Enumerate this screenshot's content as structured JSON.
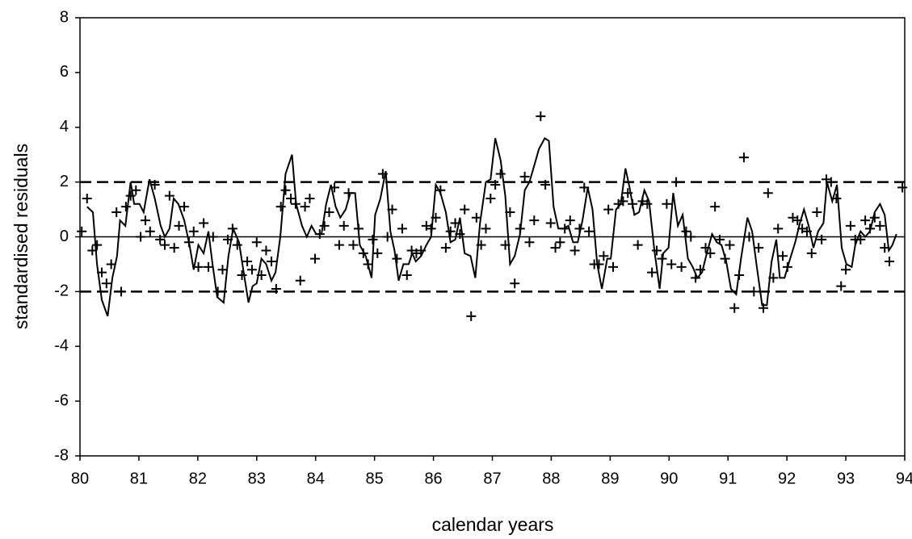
{
  "chart_data": {
    "type": "line",
    "x_label": "calendar years",
    "y_label": "standardised residuals",
    "xlim": [
      80,
      94
    ],
    "xticks": [
      80,
      81,
      82,
      83,
      84,
      85,
      86,
      87,
      88,
      89,
      90,
      91,
      92,
      93,
      94
    ],
    "ylim": [
      -8,
      8
    ],
    "yticks": [
      -8,
      -6,
      -4,
      -2,
      0,
      2,
      4,
      6,
      8
    ],
    "reference_lines": [
      {
        "value": 2,
        "style": "dashed"
      },
      {
        "value": 0,
        "style": "solid"
      },
      {
        "value": -2,
        "style": "dashed"
      }
    ],
    "series": [
      {
        "type": "line",
        "color": "#000000",
        "x": [
          80.12,
          80.22,
          80.29,
          80.37,
          80.47,
          80.55,
          80.63,
          80.68,
          80.77,
          80.86,
          80.92,
          81.01,
          81.08,
          81.18,
          81.27,
          81.37,
          81.44,
          81.52,
          81.59,
          81.67,
          81.77,
          81.86,
          81.93,
          82.01,
          82.1,
          82.18,
          82.25,
          82.33,
          82.44,
          82.52,
          82.6,
          82.7,
          82.78,
          82.86,
          82.93,
          83.0,
          83.08,
          83.16,
          83.25,
          83.32,
          83.4,
          83.49,
          83.6,
          83.67,
          83.77,
          83.85,
          83.93,
          84.01,
          84.1,
          84.18,
          84.26,
          84.34,
          84.42,
          84.51,
          84.59,
          84.67,
          84.75,
          84.85,
          84.95,
          85.01,
          85.1,
          85.19,
          85.27,
          85.34,
          85.41,
          85.49,
          85.58,
          85.64,
          85.7,
          85.79,
          85.88,
          85.96,
          86.04,
          86.12,
          86.21,
          86.29,
          86.37,
          86.45,
          86.53,
          86.63,
          86.71,
          86.79,
          86.89,
          86.97,
          87.05,
          87.14,
          87.22,
          87.3,
          87.38,
          87.47,
          87.55,
          87.63,
          87.71,
          87.79,
          87.89,
          87.96,
          88.04,
          88.12,
          88.21,
          88.29,
          88.37,
          88.45,
          88.53,
          88.62,
          88.7,
          88.78,
          88.86,
          88.95,
          89.01,
          89.1,
          89.18,
          89.26,
          89.33,
          89.41,
          89.49,
          89.58,
          89.66,
          89.75,
          89.84,
          89.9,
          89.99,
          90.07,
          90.15,
          90.23,
          90.32,
          90.4,
          90.48,
          90.56,
          90.64,
          90.73,
          90.81,
          90.89,
          90.97,
          91.05,
          91.14,
          91.22,
          91.33,
          91.41,
          91.49,
          91.58,
          91.66,
          91.74,
          91.82,
          91.88,
          91.96,
          92.04,
          92.14,
          92.22,
          92.29,
          92.37,
          92.45,
          92.53,
          92.62,
          92.68,
          92.77,
          92.85,
          92.93,
          93.01,
          93.1,
          93.16,
          93.25,
          93.33,
          93.41,
          93.49,
          93.58,
          93.66,
          93.73,
          93.79,
          93.86
        ],
        "values": [
          1.1,
          0.9,
          -1.0,
          -2.3,
          -2.9,
          -1.5,
          -0.7,
          0.6,
          0.4,
          2.0,
          1.2,
          1.2,
          0.9,
          2.1,
          1.4,
          0.4,
          0.0,
          0.3,
          1.4,
          1.2,
          0.6,
          -0.3,
          -1.2,
          -0.3,
          -0.6,
          0.2,
          -1.0,
          -2.2,
          -2.4,
          -0.7,
          0.3,
          -0.2,
          -1.3,
          -2.4,
          -1.8,
          -1.7,
          -0.8,
          -1.0,
          -1.6,
          -1.3,
          0.0,
          2.3,
          3.0,
          1.2,
          0.4,
          0.0,
          0.4,
          0.1,
          0.1,
          1.2,
          1.9,
          1.1,
          0.7,
          1.0,
          1.6,
          1.6,
          -0.3,
          -0.7,
          -1.5,
          0.8,
          1.4,
          2.4,
          0.2,
          -0.5,
          -1.6,
          -1.0,
          -1.0,
          -0.6,
          -0.9,
          -0.7,
          -0.3,
          0.0,
          1.9,
          1.6,
          0.9,
          -0.2,
          -0.1,
          0.7,
          -0.6,
          -0.7,
          -1.5,
          0.5,
          2.0,
          2.1,
          3.6,
          2.8,
          1.5,
          -1.0,
          -0.7,
          0.1,
          1.7,
          2.0,
          2.6,
          3.2,
          3.6,
          3.5,
          1.1,
          0.3,
          0.3,
          0.4,
          -0.2,
          -0.2,
          0.6,
          1.8,
          1.0,
          -1.0,
          -1.9,
          -0.8,
          -0.8,
          1.0,
          1.2,
          2.5,
          1.8,
          0.8,
          0.9,
          1.7,
          1.3,
          -0.5,
          -1.9,
          -0.6,
          -0.4,
          1.6,
          0.4,
          0.8,
          -0.8,
          -1.1,
          -1.5,
          -1.3,
          -0.6,
          0.1,
          -0.2,
          -0.3,
          -0.9,
          -1.9,
          -2.1,
          -0.8,
          0.7,
          0.2,
          -1.1,
          -2.5,
          -2.5,
          -0.9,
          -0.1,
          -1.5,
          -1.5,
          -0.9,
          -0.2,
          0.5,
          1.0,
          0.4,
          -0.4,
          0.2,
          0.5,
          2.0,
          1.3,
          1.9,
          -0.4,
          -1.0,
          -1.1,
          -0.3,
          0.2,
          0.0,
          0.2,
          0.9,
          1.2,
          0.8,
          -0.5,
          -0.3,
          0.1
        ]
      },
      {
        "type": "scatter",
        "marker": "plus",
        "color": "#000000",
        "x": [
          80.03,
          80.12,
          80.21,
          80.29,
          80.37,
          80.45,
          80.53,
          80.62,
          80.7,
          80.78,
          80.86,
          80.95,
          81.03,
          81.11,
          81.19,
          81.27,
          81.36,
          81.44,
          81.52,
          81.6,
          81.68,
          81.77,
          81.85,
          81.93,
          82.01,
          82.1,
          82.18,
          82.26,
          82.34,
          82.42,
          82.51,
          82.59,
          82.67,
          82.75,
          82.84,
          82.92,
          83.0,
          83.08,
          83.16,
          83.25,
          83.33,
          83.41,
          83.49,
          83.58,
          83.66,
          83.74,
          83.82,
          83.9,
          83.99,
          84.07,
          84.15,
          84.23,
          84.32,
          84.4,
          84.48,
          84.56,
          84.64,
          84.73,
          84.81,
          84.89,
          84.97,
          85.05,
          85.14,
          85.22,
          85.3,
          85.38,
          85.47,
          85.55,
          85.63,
          85.71,
          85.79,
          85.88,
          85.96,
          86.04,
          86.12,
          86.21,
          86.29,
          86.37,
          86.45,
          86.53,
          86.64,
          86.73,
          86.81,
          86.89,
          86.97,
          87.05,
          87.14,
          87.22,
          87.3,
          87.38,
          87.47,
          87.55,
          87.63,
          87.71,
          87.82,
          87.9,
          87.99,
          88.07,
          88.15,
          88.23,
          88.32,
          88.4,
          88.48,
          88.56,
          88.64,
          88.73,
          88.81,
          88.89,
          88.97,
          89.05,
          89.14,
          89.22,
          89.3,
          89.38,
          89.47,
          89.55,
          89.63,
          89.71,
          89.79,
          89.88,
          89.96,
          90.04,
          90.12,
          90.21,
          90.29,
          90.37,
          90.45,
          90.53,
          90.62,
          90.7,
          90.78,
          90.86,
          90.95,
          91.03,
          91.11,
          91.19,
          91.27,
          91.36,
          91.44,
          91.52,
          91.6,
          91.68,
          91.77,
          91.85,
          91.93,
          92.01,
          92.1,
          92.18,
          92.26,
          92.34,
          92.42,
          92.51,
          92.59,
          92.67,
          92.75,
          92.84,
          92.92,
          93.0,
          93.08,
          93.16,
          93.25,
          93.33,
          93.41,
          93.49,
          93.58,
          93.66,
          93.74,
          93.96
        ],
        "values": [
          0.2,
          1.4,
          -0.5,
          -0.3,
          -1.3,
          -1.7,
          -1.0,
          0.9,
          -2.0,
          1.1,
          1.5,
          1.7,
          0.0,
          0.6,
          0.2,
          1.9,
          -0.1,
          -0.3,
          1.5,
          -0.4,
          0.4,
          1.1,
          -0.2,
          0.2,
          -1.1,
          0.5,
          -1.1,
          0.0,
          -2.0,
          -1.2,
          -0.1,
          0.3,
          -0.3,
          -1.4,
          -0.9,
          -1.2,
          -0.2,
          -1.4,
          -0.5,
          -0.9,
          -1.9,
          1.1,
          1.7,
          1.4,
          1.2,
          -1.6,
          1.1,
          1.4,
          -0.8,
          0.1,
          0.4,
          0.9,
          1.8,
          -0.3,
          0.4,
          1.6,
          -0.3,
          0.3,
          -0.6,
          -1.0,
          -0.1,
          -0.6,
          2.3,
          0.0,
          1.0,
          -0.8,
          0.3,
          -1.4,
          -0.5,
          -0.6,
          -0.5,
          0.4,
          0.3,
          0.7,
          1.7,
          -0.4,
          0.2,
          0.5,
          0.1,
          1.0,
          -2.9,
          0.7,
          -0.3,
          0.3,
          1.4,
          1.9,
          2.3,
          -0.3,
          0.9,
          -1.7,
          0.3,
          2.2,
          -0.2,
          0.6,
          4.4,
          1.9,
          0.5,
          -0.4,
          -0.2,
          0.3,
          0.6,
          -0.5,
          0.3,
          1.8,
          0.2,
          -1.0,
          -1.0,
          -0.7,
          1.0,
          -1.1,
          1.2,
          1.3,
          1.6,
          1.2,
          -0.3,
          1.3,
          1.2,
          -1.3,
          -0.5,
          -0.8,
          1.2,
          -1.0,
          2.0,
          -1.1,
          0.2,
          0.0,
          -1.5,
          -1.2,
          -0.4,
          -0.6,
          1.1,
          -0.1,
          -0.8,
          -0.3,
          -2.6,
          -1.4,
          2.9,
          0.0,
          -2.0,
          -0.4,
          -2.6,
          1.6,
          -1.5,
          0.3,
          -0.7,
          -1.1,
          0.7,
          0.6,
          0.3,
          0.2,
          -0.6,
          0.9,
          -0.1,
          2.1,
          2.0,
          1.4,
          -1.8,
          -1.2,
          0.4,
          -0.1,
          -0.1,
          0.6,
          0.3,
          0.7,
          0.4,
          -0.4,
          -0.9,
          1.8
        ]
      }
    ]
  }
}
